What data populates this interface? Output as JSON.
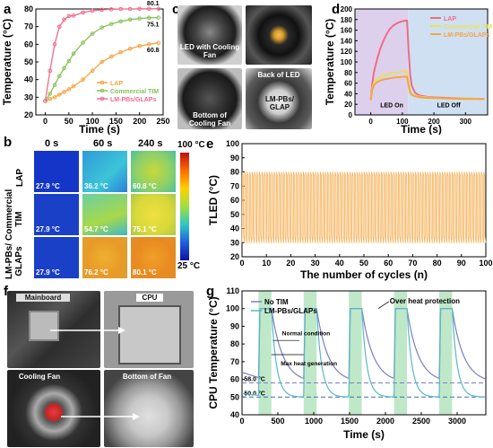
{
  "panels": {
    "a": {
      "letter": "a"
    },
    "b": {
      "letter": "b"
    },
    "c": {
      "letter": "c"
    },
    "d": {
      "letter": "d"
    },
    "e": {
      "letter": "e"
    },
    "f": {
      "letter": "f"
    },
    "g": {
      "letter": "g"
    }
  },
  "c": {
    "led_fan": "LED with Cooling Fan",
    "bottom_fan": "Bottom of Cooling Fan",
    "back_led": "Back of LED",
    "lm_label": "LM-PBs/ GLAP"
  },
  "b": {
    "times": [
      "0 s",
      "60 s",
      "240 s"
    ],
    "rows": [
      {
        "label": "LAP",
        "values": [
          "27.9 °C",
          "36.2 °C",
          "60.8 °C"
        ]
      },
      {
        "label": "Commercial TIM",
        "values": [
          "27.9 °C",
          "54.7 °C",
          "75.1 °C"
        ]
      },
      {
        "label": "LM-PBs/ GLAPs",
        "values": [
          "27.9 °C",
          "76.2 °C",
          "80.1 °C"
        ]
      }
    ],
    "scale_max": "100 °C",
    "scale_min": "25 °C"
  },
  "f": {
    "mainboard": "Mainboard",
    "cpu": "CPU",
    "cooling_fan": "Cooling Fan",
    "bottom_fan": "Bottom of Fan"
  },
  "chart_data": [
    {
      "id": "a",
      "type": "line",
      "xlabel": "Time (s)",
      "ylabel": "Temperature (°C)",
      "xlim": [
        -20,
        250
      ],
      "ylim": [
        20,
        80
      ],
      "xticks": [
        0,
        50,
        100,
        150,
        200,
        250
      ],
      "yticks": [
        20,
        30,
        40,
        50,
        60,
        70,
        80
      ],
      "legend_position": "center-right",
      "series": [
        {
          "name": "LAP",
          "color": "#f5a442",
          "x": [
            0,
            10,
            20,
            30,
            40,
            50,
            60,
            80,
            100,
            120,
            140,
            160,
            180,
            200,
            220,
            240
          ],
          "y": [
            27.9,
            29,
            30,
            31.5,
            33,
            34.5,
            36.2,
            40,
            45,
            50,
            53,
            55.5,
            57.5,
            59,
            60,
            60.8
          ],
          "end_label": "60.8"
        },
        {
          "name": "Commercial TIM",
          "color": "#86c25a",
          "x": [
            0,
            10,
            20,
            30,
            40,
            50,
            60,
            80,
            100,
            120,
            140,
            160,
            180,
            200,
            220,
            240
          ],
          "y": [
            27.9,
            32,
            37,
            42,
            46.5,
            50.5,
            54.7,
            61,
            66,
            69.5,
            71.5,
            73,
            74,
            74.6,
            75,
            75.1
          ],
          "end_label": "75.1"
        },
        {
          "name": "LM-PBs/GLAPs",
          "color": "#f06b8a",
          "x": [
            0,
            10,
            20,
            30,
            40,
            50,
            60,
            80,
            100,
            120,
            140,
            160,
            180,
            200,
            220,
            240
          ],
          "y": [
            27.9,
            45,
            60,
            70,
            74,
            76,
            76.2,
            78,
            79,
            79.5,
            79.8,
            80,
            80,
            80.1,
            80.1,
            80.1
          ],
          "end_label": "80.1"
        }
      ]
    },
    {
      "id": "d",
      "type": "line",
      "xlabel": "Time (s)",
      "ylabel": "Temperature (°C)",
      "xlim": [
        -50,
        370
      ],
      "ylim": [
        0,
        200
      ],
      "xticks": [
        0,
        100,
        200,
        300
      ],
      "yticks": [
        0,
        20,
        40,
        60,
        80,
        100,
        120,
        140,
        160,
        180,
        200
      ],
      "legend_position": "top-right",
      "annotations": [
        "LED On",
        "LED Off"
      ],
      "series": [
        {
          "name": "LAP",
          "color": "#f06b8a",
          "x": [
            0,
            5,
            10,
            20,
            30,
            40,
            50,
            60,
            70,
            80,
            90,
            100,
            110,
            115,
            120,
            125,
            130,
            140,
            150,
            160,
            180,
            200,
            250,
            300,
            360
          ],
          "y": [
            28,
            60,
            80,
            105,
            125,
            140,
            152,
            162,
            168,
            172,
            175,
            177,
            178,
            178,
            120,
            75,
            55,
            42,
            38,
            36,
            34,
            33,
            32,
            31,
            30
          ]
        },
        {
          "name": "Commercial TIM",
          "color": "#e8e05a",
          "x": [
            0,
            5,
            10,
            20,
            30,
            40,
            50,
            60,
            70,
            80,
            90,
            100,
            110,
            115,
            120,
            125,
            130,
            140,
            150,
            160,
            180,
            200,
            250,
            300,
            360
          ],
          "y": [
            28,
            50,
            60,
            68,
            72,
            75,
            77,
            78,
            79,
            80,
            81,
            82,
            82,
            82,
            60,
            45,
            40,
            36,
            35,
            34,
            33,
            32,
            31,
            31,
            30
          ]
        },
        {
          "name": "LM-PBs/GLAPs",
          "color": "#f5a442",
          "x": [
            0,
            5,
            10,
            20,
            30,
            40,
            50,
            60,
            70,
            80,
            90,
            100,
            110,
            115,
            120,
            125,
            130,
            140,
            150,
            160,
            180,
            200,
            250,
            300,
            360
          ],
          "y": [
            28,
            48,
            56,
            62,
            65,
            67,
            68,
            69,
            70,
            71,
            71,
            72,
            72,
            72,
            55,
            42,
            38,
            35,
            34,
            33,
            32,
            32,
            31,
            30,
            30
          ]
        }
      ]
    },
    {
      "id": "e",
      "type": "line",
      "xlabel": "The number of cycles (n)",
      "ylabel": "TLED (°C)",
      "xlim": [
        0,
        100
      ],
      "ylim": [
        20,
        100
      ],
      "xticks": [
        0,
        10,
        20,
        30,
        40,
        50,
        60,
        70,
        80,
        90,
        100
      ],
      "yticks": [
        20,
        30,
        40,
        50,
        60,
        70,
        80,
        90,
        100
      ],
      "series": [
        {
          "name": "",
          "color": "#f7b25a",
          "cycles": 100,
          "min": 30,
          "max": 80
        }
      ]
    },
    {
      "id": "g",
      "type": "line",
      "xlabel": "Time (s)",
      "ylabel": "CPU Temperature (°C)",
      "xlim": [
        0,
        3400
      ],
      "ylim": [
        40,
        110
      ],
      "xticks": [
        0,
        500,
        1000,
        1500,
        2000,
        2500,
        3000
      ],
      "yticks": [
        40,
        50,
        60,
        70,
        80,
        90,
        100,
        110
      ],
      "legend_position": "top-left",
      "annotations": [
        "Normal condition",
        "Max heat generation",
        "Over heat protection",
        "58.0 °C",
        "50.0 °C"
      ],
      "baselines": [
        58,
        50
      ],
      "loads": [
        [
          230,
          410
        ],
        [
          860,
          1040
        ],
        [
          1490,
          1670
        ],
        [
          2120,
          2300
        ],
        [
          2750,
          2930
        ]
      ],
      "series": [
        {
          "name": "No TIM",
          "color": "#7a7fc4",
          "peak": 100,
          "floor": 58
        },
        {
          "name": "LM-PBs/GLAPs",
          "color": "#5bb8c8",
          "peak": 100,
          "floor": 50
        }
      ]
    }
  ]
}
